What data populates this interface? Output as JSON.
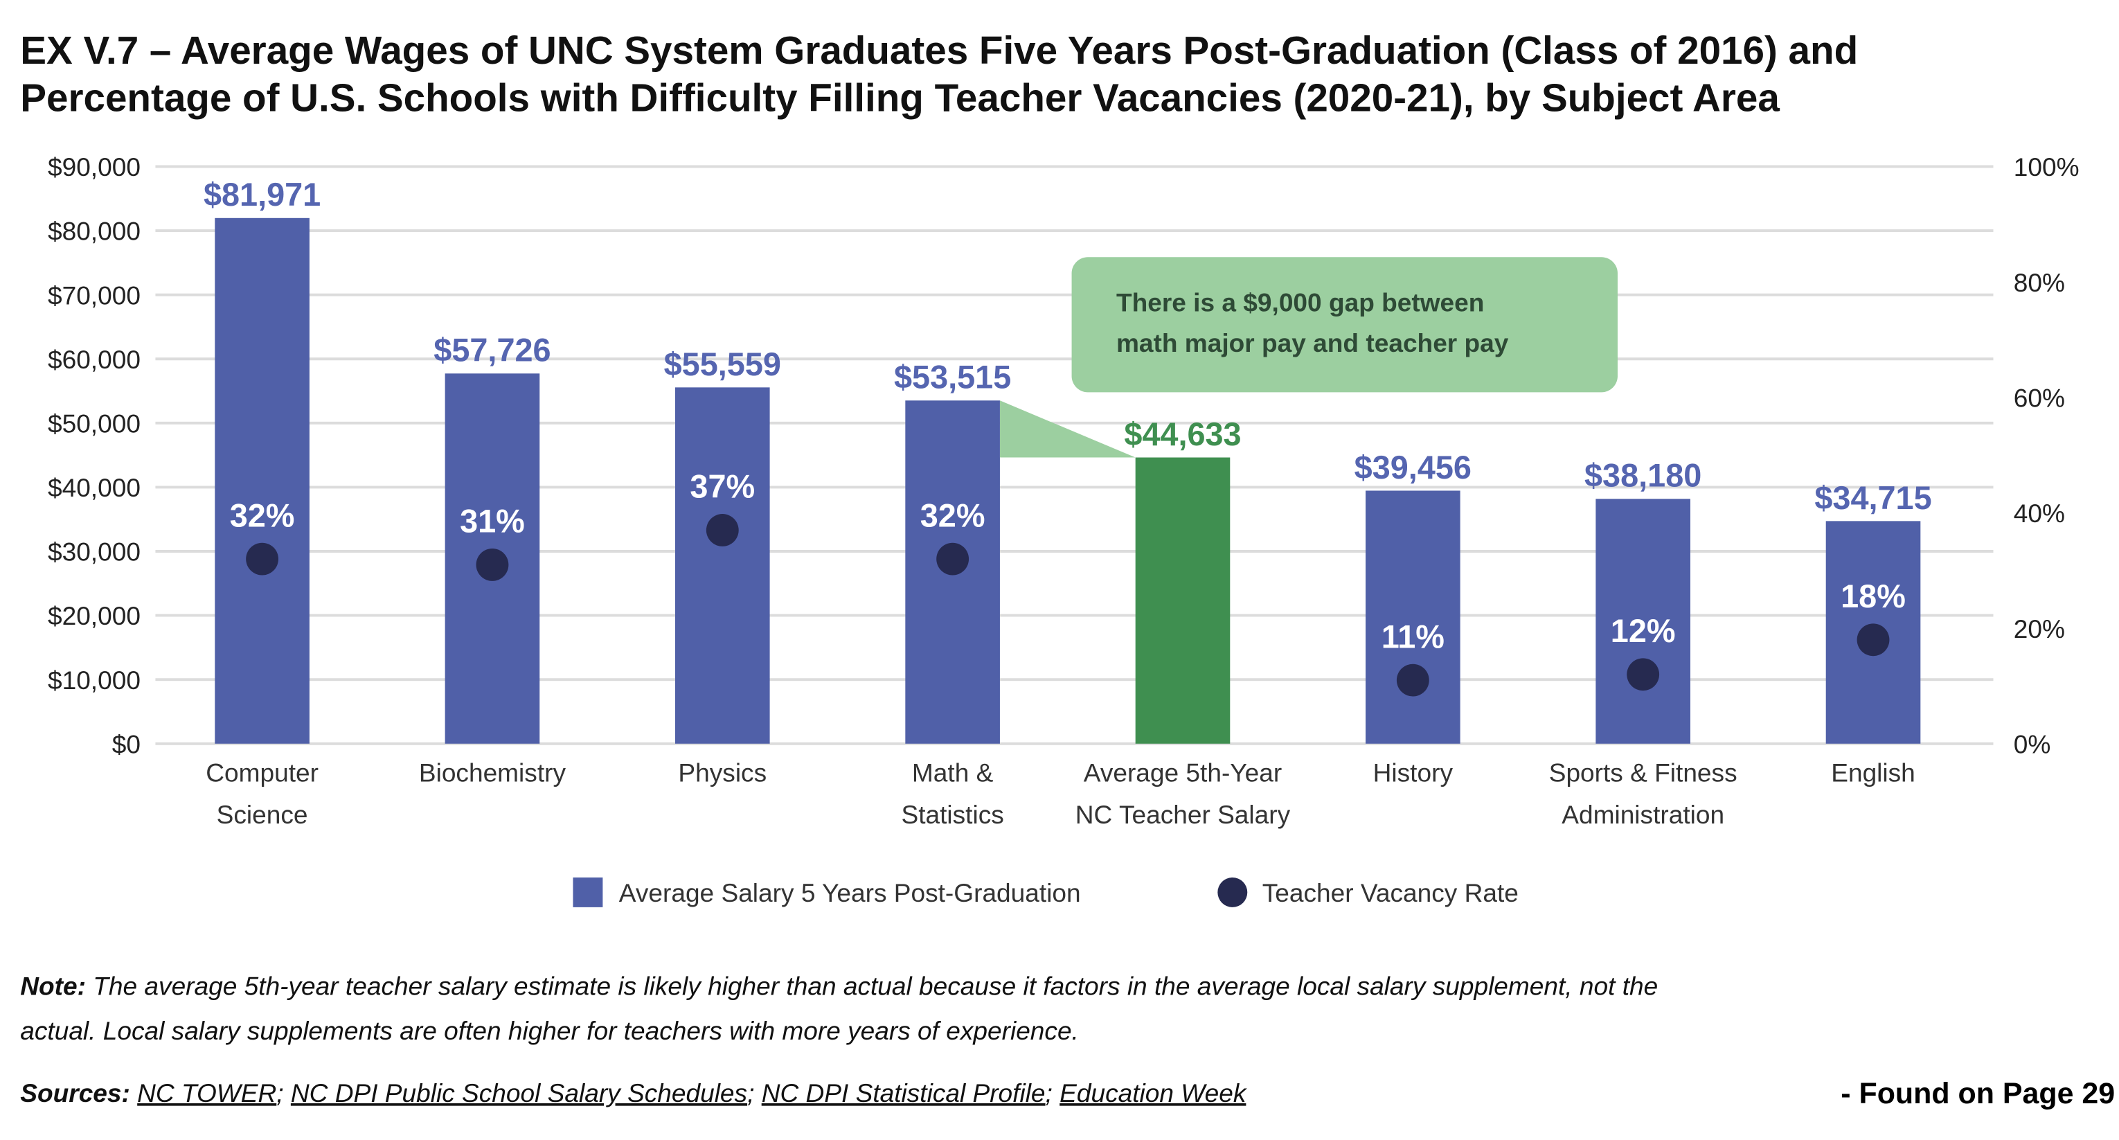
{
  "title_lines": [
    "EX V.7 – Average Wages of UNC System Graduates Five Years Post-Graduation (Class of 2016) and",
    "Percentage of U.S. Schools with Difficulty Filling Teacher Vacancies (2020-21), by Subject Area"
  ],
  "chart_data": {
    "type": "bar",
    "categories": [
      [
        "Computer",
        "Science"
      ],
      [
        "Biochemistry"
      ],
      [
        "Physics"
      ],
      [
        "Math &",
        "Statistics"
      ],
      [
        "Average 5th-Year",
        "NC Teacher Salary"
      ],
      [
        "History"
      ],
      [
        "Sports & Fitness",
        "Administration"
      ],
      [
        "English"
      ]
    ],
    "series": [
      {
        "name": "Average Salary 5 Years Post-Graduation",
        "axis": "left",
        "type": "bar",
        "values": [
          81971,
          57726,
          55559,
          53515,
          44633,
          39456,
          38180,
          34715
        ],
        "labels": [
          "$81,971",
          "$57,726",
          "$55,559",
          "$53,515",
          "$44,633",
          "$39,456",
          "$38,180",
          "$34,715"
        ]
      },
      {
        "name": "Teacher Vacancy Rate",
        "axis": "right",
        "type": "scatter",
        "values": [
          32,
          31,
          37,
          32,
          null,
          11,
          12,
          18
        ],
        "labels": [
          "32%",
          "31%",
          "37%",
          "32%",
          null,
          "11%",
          "12%",
          "18%"
        ]
      }
    ],
    "highlight_index": 4,
    "left_axis": {
      "ylim": [
        0,
        90000
      ],
      "ticks": [
        "$0",
        "$10,000",
        "$20,000",
        "$30,000",
        "$40,000",
        "$50,000",
        "$60,000",
        "$70,000",
        "$80,000",
        "$90,000"
      ]
    },
    "right_axis": {
      "ylim": [
        0,
        100
      ],
      "ticks": [
        "0%",
        "20%",
        "40%",
        "60%",
        "80%",
        "100%"
      ]
    },
    "grid": true,
    "legend_position": "bottom",
    "annotation": [
      "There is a $9,000 gap between",
      "math major pay and teacher pay"
    ],
    "colors": {
      "bar": "#5060a8",
      "bar_label": "#5565b0",
      "highlight": "#3f8f50",
      "dot": "#262a50",
      "callout": "#9ccfa0",
      "connector": "#9ccfa0"
    }
  },
  "note": {
    "label": "Note:",
    "text": " The average 5th-year teacher salary estimate is likely higher than actual because it factors in the average local salary supplement, not the",
    "text2": "actual. Local salary supplements are often higher for teachers with more years of experience."
  },
  "sources": {
    "label": "Sources:",
    "links": [
      "NC TOWER",
      "NC DPI Public School Salary Schedules",
      "NC DPI Statistical Profile",
      "Education Week"
    ],
    "separator": "; "
  },
  "found": "- Found on Page 29"
}
